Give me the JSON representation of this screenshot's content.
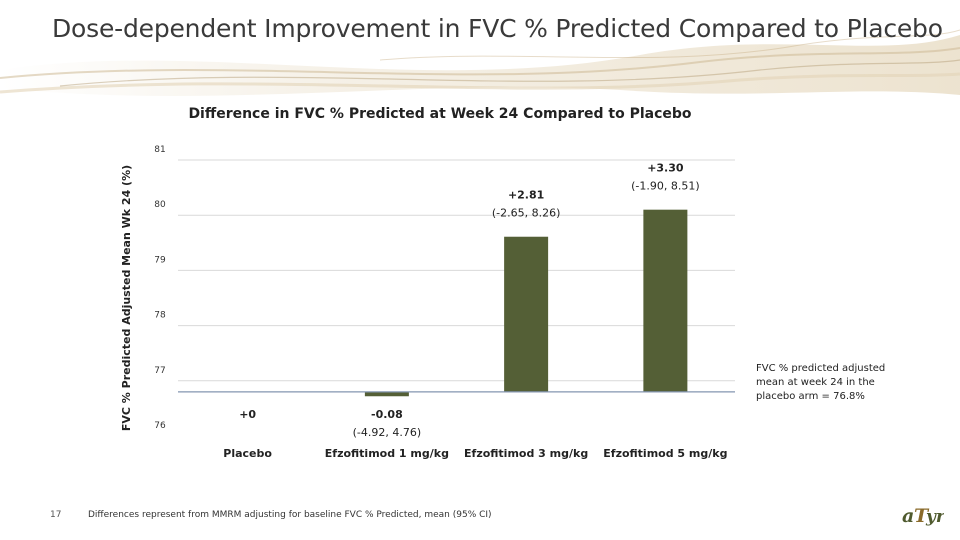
{
  "slide": {
    "title": "Dose-dependent Improvement in FVC % Predicted Compared to Placebo",
    "page_number": "17",
    "footnote": "Differences represent from MMRM adjusting for baseline FVC % Predicted, mean (95% CI)",
    "note": "FVC % predicted adjusted mean at week 24 in the placebo arm = 76.8%",
    "logo_text": "aTyr"
  },
  "colors": {
    "bar": "#545f36",
    "grid": "#d9d9d9",
    "baseline": "#8496b0",
    "banner": "#d8c9ad"
  },
  "chart_data": {
    "type": "bar",
    "title": "Difference in FVC % Predicted at Week 24 Compared to Placebo",
    "ylabel": "FVC % Predicted Adjusted Mean Wk 24 (%)",
    "xlabel": "",
    "ylim": [
      76,
      81
    ],
    "yticks": [
      76,
      77,
      78,
      79,
      80,
      81
    ],
    "baseline": 76.8,
    "grid": true,
    "categories": [
      "Placebo",
      "Efzofitimod 1 mg/kg",
      "Efzofitimod 3 mg/kg",
      "Efzofitimod 5 mg/kg"
    ],
    "values": [
      76.8,
      76.72,
      79.61,
      80.1
    ],
    "differences": [
      "+0",
      "-0.08",
      "+2.81",
      "+3.30"
    ],
    "ci_labels": [
      "",
      "(-4.92, 4.76)",
      "(-2.65, 8.26)",
      "(-1.90, 8.51)"
    ]
  }
}
